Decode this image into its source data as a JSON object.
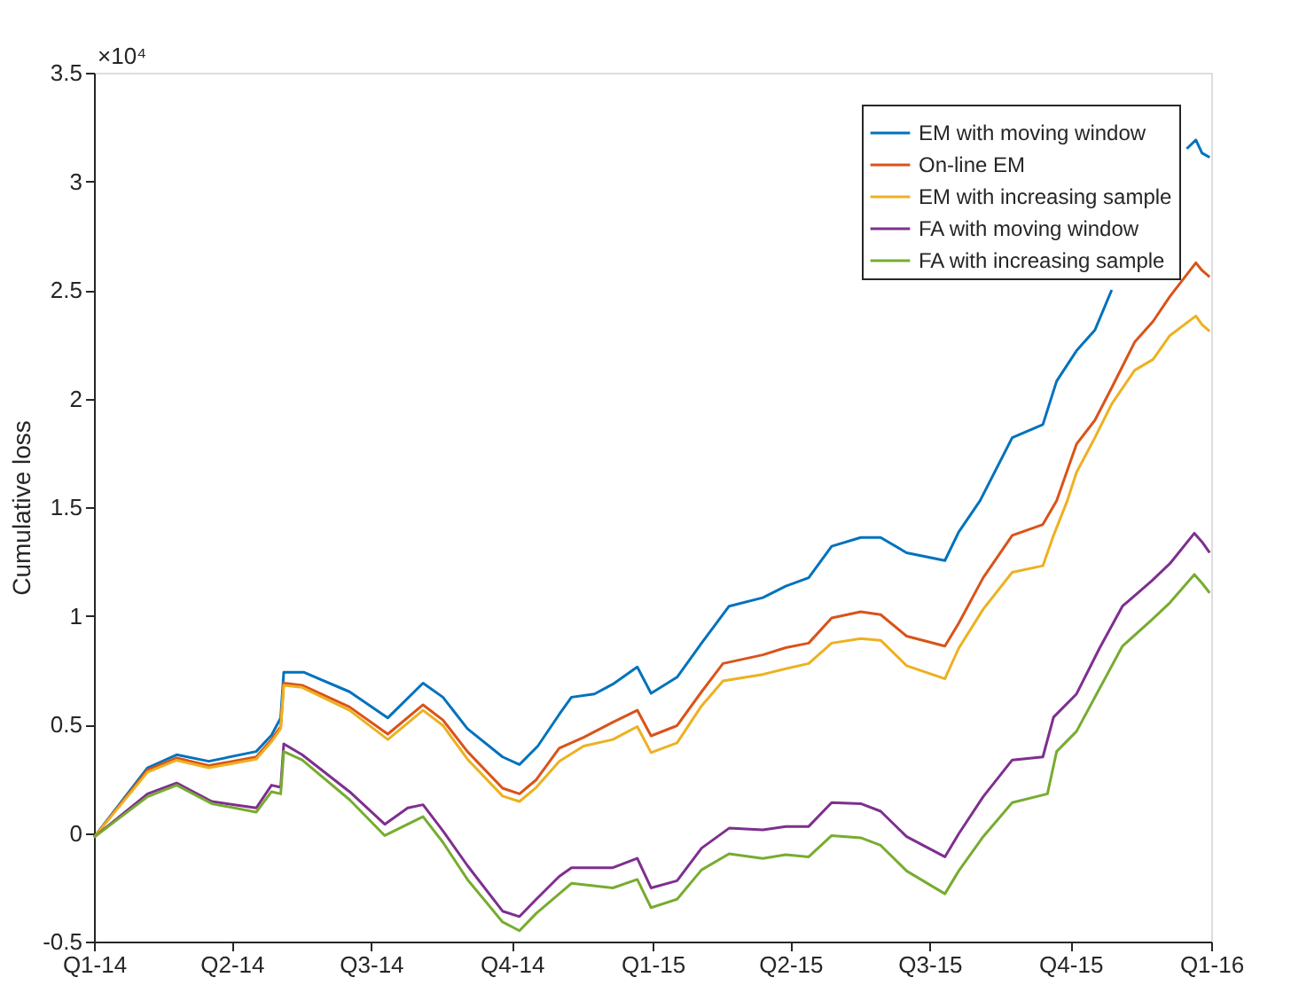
{
  "chart_data": {
    "type": "line",
    "ylabel": "Cumulative loss",
    "annotations": [
      "×10⁴"
    ],
    "xlim": [
      "2014-01-01",
      "2016-01-01"
    ],
    "xticks": [
      {
        "value": "2014-01-01",
        "label": "Q1-14"
      },
      {
        "value": "2014-04-01",
        "label": "Q2-14"
      },
      {
        "value": "2014-07-01",
        "label": "Q3-14"
      },
      {
        "value": "2014-10-01",
        "label": "Q4-14"
      },
      {
        "value": "2015-01-01",
        "label": "Q1-15"
      },
      {
        "value": "2015-04-01",
        "label": "Q2-15"
      },
      {
        "value": "2015-07-01",
        "label": "Q3-15"
      },
      {
        "value": "2015-10-01",
        "label": "Q4-15"
      },
      {
        "value": "2016-01-01",
        "label": "Q1-16"
      }
    ],
    "ylim": [
      -0.5,
      3.5
    ],
    "yticks": [
      -0.5,
      0,
      0.5,
      1,
      1.5,
      2,
      2.5,
      3,
      3.5
    ],
    "grid": false,
    "legend": "top right",
    "marker": "none",
    "line_style": "solid",
    "series": [
      {
        "name": "EM with moving window",
        "color": "#0072bd",
        "x": [
          "2014-01-01",
          "2014-02-05",
          "2014-02-24",
          "2014-03-17",
          "2014-04-17",
          "2014-04-27",
          "2014-05-03",
          "2014-05-05",
          "2014-05-18",
          "2014-06-17",
          "2014-07-12",
          "2014-08-04",
          "2014-08-17",
          "2014-09-02",
          "2014-09-25",
          "2014-10-06",
          "2014-10-18",
          "2014-11-01",
          "2014-11-09",
          "2014-11-24",
          "2014-12-06",
          "2014-12-22",
          "2014-12-31",
          "2015-01-17",
          "2015-02-02",
          "2015-02-20",
          "2015-03-14",
          "2015-03-29",
          "2015-04-13",
          "2015-04-28",
          "2015-05-17",
          "2015-05-30",
          "2015-06-16",
          "2015-07-11",
          "2015-07-20",
          "2015-08-03",
          "2015-08-24",
          "2015-09-13",
          "2015-09-22",
          "2015-10-05",
          "2015-10-17",
          "2015-10-28",
          "2015-11-07",
          "2015-11-25",
          "2015-12-16",
          "2015-12-22",
          "2015-12-26",
          "2015-12-31"
        ],
        "values": [
          -0.02,
          0.3,
          0.36,
          0.33,
          0.375,
          0.45,
          0.53,
          0.74,
          0.74,
          0.65,
          0.53,
          0.69,
          0.625,
          0.48,
          0.35,
          0.315,
          0.4,
          0.546,
          0.625,
          0.64,
          0.685,
          0.764,
          0.643,
          0.717,
          0.874,
          1.044,
          1.083,
          1.136,
          1.175,
          1.32,
          1.36,
          1.36,
          1.29,
          1.254,
          1.385,
          1.53,
          1.82,
          1.88,
          2.08,
          2.22,
          2.315,
          2.5,
          null,
          null,
          3.15,
          3.19,
          3.13,
          3.11
        ]
      },
      {
        "name": "On-line EM",
        "color": "#d95319",
        "x": [
          "2014-01-01",
          "2014-02-05",
          "2014-02-24",
          "2014-03-17",
          "2014-04-17",
          "2014-04-27",
          "2014-05-03",
          "2014-05-05",
          "2014-05-17",
          "2014-06-17",
          "2014-07-12",
          "2014-08-04",
          "2014-08-17",
          "2014-09-02",
          "2014-09-25",
          "2014-10-06",
          "2014-10-17",
          "2014-11-01",
          "2014-11-17",
          "2014-12-06",
          "2014-12-22",
          "2014-12-31",
          "2015-01-17",
          "2015-02-02",
          "2015-02-16",
          "2015-03-14",
          "2015-03-29",
          "2015-04-13",
          "2015-04-28",
          "2015-05-17",
          "2015-05-30",
          "2015-06-16",
          "2015-07-11",
          "2015-07-20",
          "2015-08-05",
          "2015-08-24",
          "2015-09-13",
          "2015-09-22",
          "2015-10-05",
          "2015-10-17",
          "2015-10-28",
          "2015-11-12",
          "2015-11-24",
          "2015-12-05",
          "2015-12-22",
          "2015-12-26",
          "2015-12-31"
        ],
        "values": [
          -0.02,
          0.29,
          0.345,
          0.31,
          0.35,
          0.43,
          0.49,
          0.69,
          0.68,
          0.58,
          0.455,
          0.59,
          0.52,
          0.375,
          0.206,
          0.18,
          0.245,
          0.39,
          0.44,
          0.51,
          0.565,
          0.447,
          0.494,
          0.65,
          0.78,
          0.82,
          0.853,
          0.874,
          0.99,
          1.018,
          1.005,
          0.906,
          0.86,
          0.965,
          1.175,
          1.37,
          1.42,
          1.53,
          1.79,
          1.9,
          2.05,
          2.26,
          2.355,
          2.47,
          2.625,
          2.59,
          2.56
        ]
      },
      {
        "name": "EM with increasing sample",
        "color": "#edb120",
        "x": [
          "2014-01-01",
          "2014-02-05",
          "2014-02-24",
          "2014-03-17",
          "2014-04-17",
          "2014-04-27",
          "2014-05-03",
          "2014-05-05",
          "2014-05-17",
          "2014-06-17",
          "2014-07-12",
          "2014-08-04",
          "2014-08-17",
          "2014-09-02",
          "2014-09-25",
          "2014-10-06",
          "2014-10-17",
          "2014-11-01",
          "2014-11-17",
          "2014-12-06",
          "2014-12-22",
          "2014-12-31",
          "2015-01-17",
          "2015-02-02",
          "2015-02-16",
          "2015-03-14",
          "2015-03-29",
          "2015-04-13",
          "2015-04-28",
          "2015-05-17",
          "2015-05-30",
          "2015-06-16",
          "2015-07-11",
          "2015-07-20",
          "2015-08-05",
          "2015-08-24",
          "2015-09-13",
          "2015-09-20",
          "2015-09-29",
          "2015-10-05",
          "2015-10-17",
          "2015-10-28",
          "2015-11-12",
          "2015-11-24",
          "2015-12-05",
          "2015-12-22",
          "2015-12-26",
          "2015-12-31"
        ],
        "values": [
          -0.02,
          0.28,
          0.335,
          0.3,
          0.34,
          0.42,
          0.48,
          0.68,
          0.67,
          0.565,
          0.43,
          0.565,
          0.495,
          0.34,
          0.17,
          0.145,
          0.21,
          0.33,
          0.4,
          0.43,
          0.49,
          0.37,
          0.415,
          0.585,
          0.7,
          0.73,
          0.756,
          0.78,
          0.874,
          0.895,
          0.887,
          0.77,
          0.71,
          0.85,
          1.03,
          1.2,
          1.23,
          1.37,
          1.53,
          1.66,
          1.82,
          1.975,
          2.13,
          2.18,
          2.29,
          2.38,
          2.34,
          2.31
        ]
      },
      {
        "name": "FA with moving window",
        "color": "#7e2f8e",
        "x": [
          "2014-01-01",
          "2014-02-05",
          "2014-02-24",
          "2014-03-19",
          "2014-04-17",
          "2014-04-27",
          "2014-05-03",
          "2014-05-05",
          "2014-05-17",
          "2014-06-17",
          "2014-07-10",
          "2014-07-25",
          "2014-08-04",
          "2014-08-17",
          "2014-09-02",
          "2014-09-25",
          "2014-10-06",
          "2014-10-17",
          "2014-11-01",
          "2014-11-09",
          "2014-12-06",
          "2014-12-22",
          "2014-12-31",
          "2015-01-17",
          "2015-02-02",
          "2015-02-20",
          "2015-03-14",
          "2015-03-29",
          "2015-04-13",
          "2015-04-28",
          "2015-05-17",
          "2015-05-30",
          "2015-06-16",
          "2015-07-11",
          "2015-07-20",
          "2015-08-05",
          "2015-08-24",
          "2015-09-13",
          "2015-09-20",
          "2015-10-05",
          "2015-10-20",
          "2015-11-04",
          "2015-11-23",
          "2015-12-05",
          "2015-12-21",
          "2015-12-26",
          "2015-12-31"
        ],
        "values": [
          -0.02,
          0.18,
          0.23,
          0.145,
          0.115,
          0.22,
          0.21,
          0.41,
          0.36,
          0.19,
          0.04,
          0.115,
          0.13,
          0.01,
          -0.15,
          -0.36,
          -0.385,
          -0.305,
          -0.2,
          -0.16,
          -0.16,
          -0.117,
          -0.253,
          -0.22,
          -0.07,
          0.022,
          0.014,
          0.03,
          0.03,
          0.14,
          0.135,
          0.1,
          -0.017,
          -0.11,
          -0.004,
          0.167,
          0.336,
          0.35,
          0.533,
          0.64,
          0.85,
          1.044,
          1.16,
          1.24,
          1.38,
          1.34,
          1.29
        ]
      },
      {
        "name": "FA with increasing sample",
        "color": "#77ac30",
        "x": [
          "2014-01-01",
          "2014-02-05",
          "2014-02-24",
          "2014-03-19",
          "2014-04-17",
          "2014-04-27",
          "2014-05-03",
          "2014-05-05",
          "2014-05-17",
          "2014-06-17",
          "2014-07-10",
          "2014-08-04",
          "2014-08-17",
          "2014-09-02",
          "2014-09-25",
          "2014-10-06",
          "2014-10-17",
          "2014-11-01",
          "2014-11-09",
          "2014-12-06",
          "2014-12-22",
          "2014-12-31",
          "2015-01-17",
          "2015-02-02",
          "2015-02-20",
          "2015-03-14",
          "2015-03-29",
          "2015-04-13",
          "2015-04-28",
          "2015-05-17",
          "2015-05-30",
          "2015-06-16",
          "2015-07-11",
          "2015-07-20",
          "2015-08-05",
          "2015-08-24",
          "2015-09-16",
          "2015-09-22",
          "2015-10-05",
          "2015-10-20",
          "2015-11-04",
          "2015-11-23",
          "2015-12-05",
          "2015-12-21",
          "2015-12-26",
          "2015-12-31"
        ],
        "values": [
          -0.02,
          0.167,
          0.22,
          0.135,
          0.096,
          0.19,
          0.18,
          0.375,
          0.336,
          0.153,
          -0.012,
          0.075,
          -0.043,
          -0.214,
          -0.41,
          -0.45,
          -0.37,
          -0.28,
          -0.232,
          -0.253,
          -0.214,
          -0.344,
          -0.305,
          -0.17,
          -0.096,
          -0.117,
          -0.1,
          -0.11,
          -0.012,
          -0.022,
          -0.057,
          -0.175,
          -0.28,
          -0.175,
          -0.017,
          0.14,
          0.18,
          0.375,
          0.468,
          0.664,
          0.86,
          0.98,
          1.06,
          1.19,
          1.15,
          1.105
        ]
      }
    ]
  }
}
